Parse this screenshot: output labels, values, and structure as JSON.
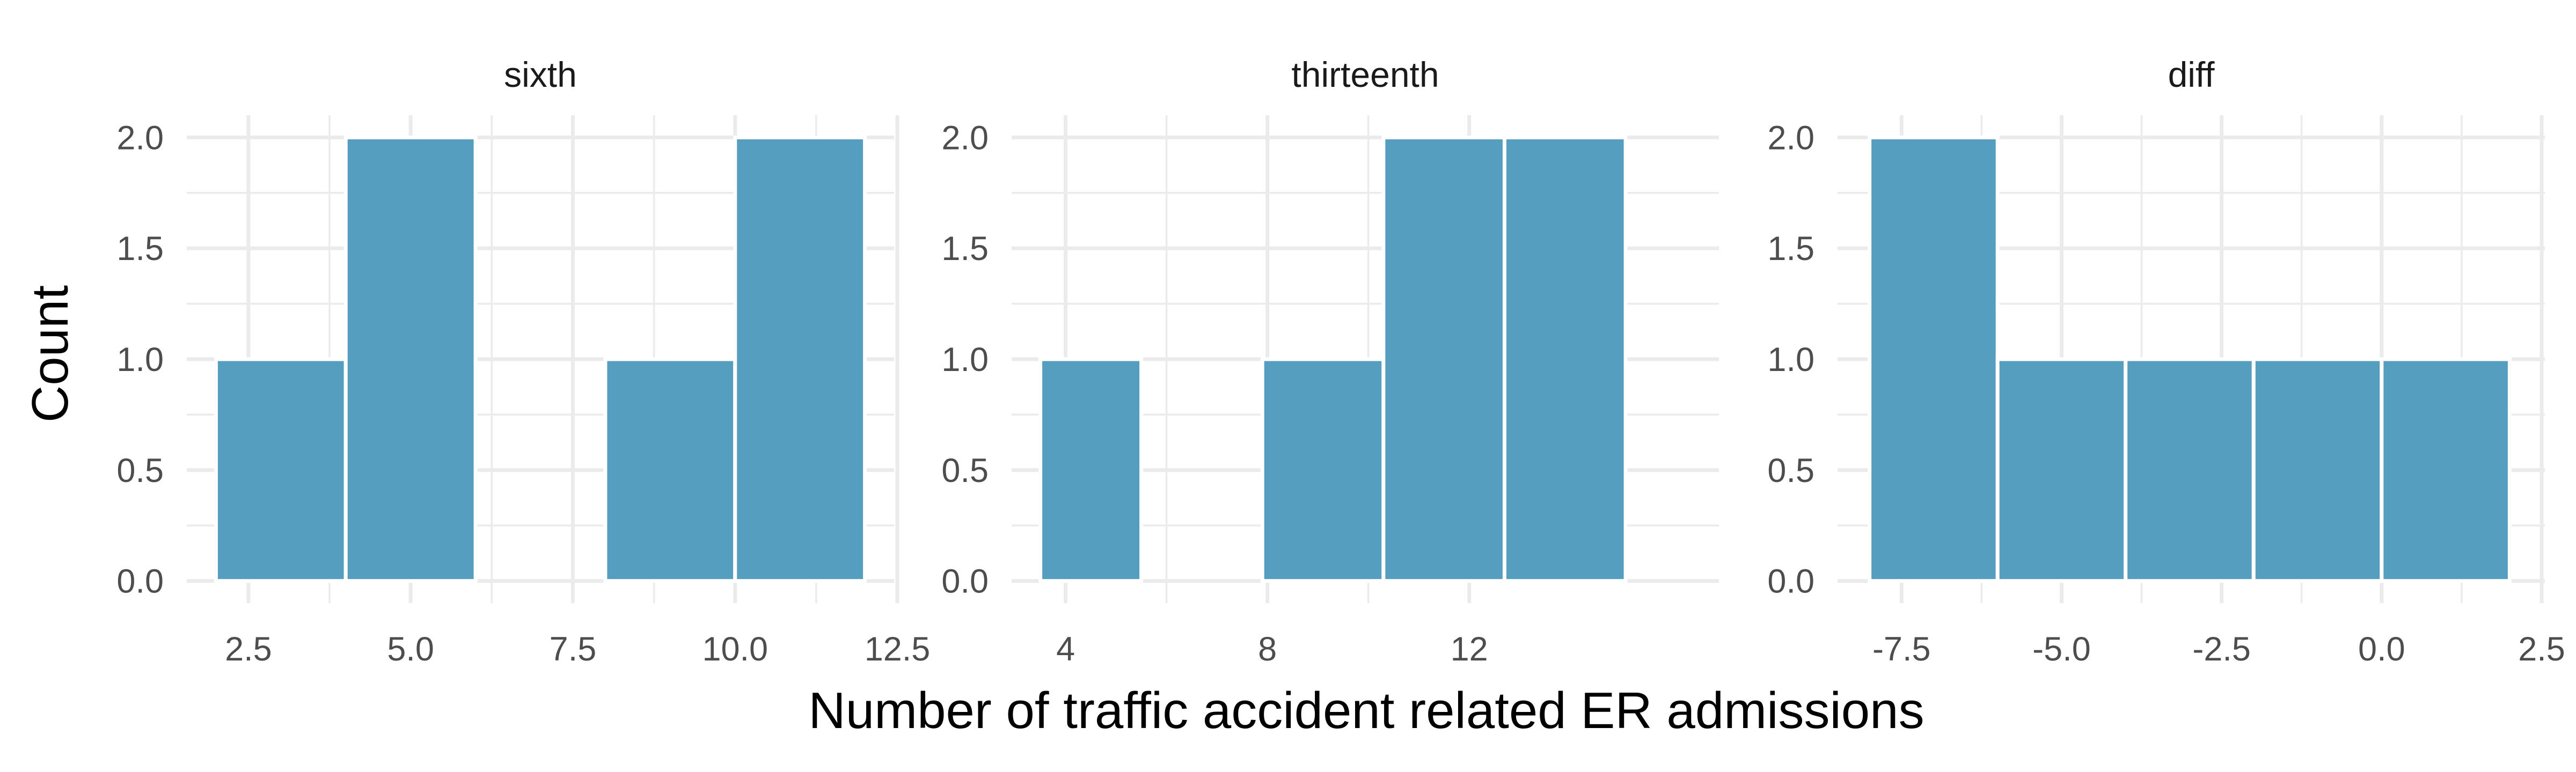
{
  "chart_data": {
    "type": "bar",
    "subtype": "faceted-histogram",
    "xlabel": "Number of traffic accident related ER admissions",
    "ylabel": "Count",
    "bar_color": "#569ebf",
    "grid": true,
    "ylim": [
      -0.1,
      2.1
    ],
    "yticks": [
      0.0,
      0.5,
      1.0,
      1.5,
      2.0
    ],
    "ytick_labels": [
      "0.0",
      "0.5",
      "1.0",
      "1.5",
      "2.0"
    ],
    "facets": [
      {
        "title": "sixth",
        "xlim": [
          1.55,
          12.45
        ],
        "xticks": [
          2.5,
          5.0,
          7.5,
          10.0,
          12.5
        ],
        "xtick_labels": [
          "2.5",
          "5.0",
          "7.5",
          "10.0",
          "12.5"
        ],
        "bins": [
          {
            "x0": 2.0,
            "x1": 4.0,
            "count": 1
          },
          {
            "x0": 4.0,
            "x1": 6.0,
            "count": 2
          },
          {
            "x0": 6.0,
            "x1": 8.0,
            "count": 0
          },
          {
            "x0": 8.0,
            "x1": 10.0,
            "count": 1
          },
          {
            "x0": 10.0,
            "x1": 12.0,
            "count": 2
          }
        ]
      },
      {
        "title": "thirteenth",
        "xlim": [
          2.93,
          16.95
        ],
        "xticks": [
          4,
          8,
          12
        ],
        "xtick_labels": [
          "4",
          "8",
          "12"
        ],
        "bins": [
          {
            "x0": 3.5,
            "x1": 5.5,
            "count": 1
          },
          {
            "x0": 5.5,
            "x1": 7.9,
            "count": 0
          },
          {
            "x0": 7.9,
            "x1": 10.3,
            "count": 1
          },
          {
            "x0": 10.3,
            "x1": 12.7,
            "count": 2
          },
          {
            "x0": 12.7,
            "x1": 15.1,
            "count": 2
          }
        ]
      },
      {
        "title": "diff",
        "xlim": [
          -8.5,
          2.55
        ],
        "xticks": [
          -7.5,
          -5.0,
          -2.5,
          0.0,
          2.5
        ],
        "xtick_labels": [
          "-7.5",
          "-5.0",
          "-2.5",
          "0.0",
          "2.5"
        ],
        "bins": [
          {
            "x0": -8.0,
            "x1": -6.0,
            "count": 2
          },
          {
            "x0": -6.0,
            "x1": -4.0,
            "count": 1
          },
          {
            "x0": -4.0,
            "x1": -2.0,
            "count": 1
          },
          {
            "x0": -2.0,
            "x1": 0.0,
            "count": 1
          },
          {
            "x0": 0.0,
            "x1": 2.0,
            "count": 1
          }
        ]
      }
    ]
  }
}
